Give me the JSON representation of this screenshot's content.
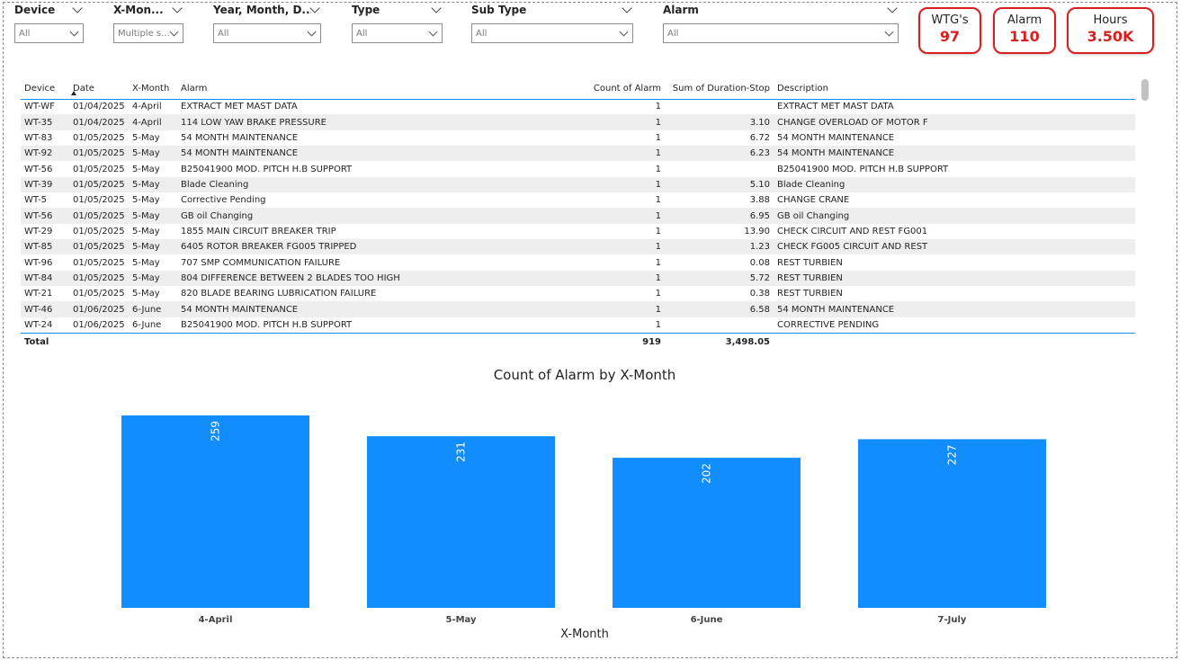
{
  "slicers": [
    {
      "title": "Device",
      "value": "All"
    },
    {
      "title": "X-Mon...",
      "value": "Multiple s..."
    },
    {
      "title": "Year, Month, D...",
      "value": "All"
    },
    {
      "title": "Type",
      "value": "All"
    },
    {
      "title": "Sub Type",
      "value": "All"
    },
    {
      "title": "Alarm",
      "value": "All"
    }
  ],
  "kpis": [
    {
      "label": "WTG's",
      "value": "97"
    },
    {
      "label": "Alarm",
      "value": "110"
    },
    {
      "label": "Hours",
      "value": "3.50K"
    }
  ],
  "table": {
    "headers": {
      "device": "Device",
      "date": "Date",
      "month": "X-Month",
      "alarm": "Alarm",
      "count": "Count of Alarm",
      "duration": "Sum of Duration-Stop",
      "description": "Description"
    },
    "rows": [
      {
        "device": "WT-WF",
        "date": "01/04/2025",
        "month": "4-April",
        "alarm": "EXTRACT MET MAST DATA",
        "count": "1",
        "duration": "",
        "description": "EXTRACT MET MAST DATA"
      },
      {
        "device": "WT-35",
        "date": "01/04/2025",
        "month": "4-April",
        "alarm": "114 LOW YAW BRAKE PRESSURE",
        "count": "1",
        "duration": "3.10",
        "description": "CHANGE OVERLOAD OF MOTOR F"
      },
      {
        "device": "WT-83",
        "date": "01/05/2025",
        "month": "5-May",
        "alarm": "54 MONTH MAINTENANCE",
        "count": "1",
        "duration": "6.72",
        "description": "54 MONTH MAINTENANCE"
      },
      {
        "device": "WT-92",
        "date": "01/05/2025",
        "month": "5-May",
        "alarm": "54 MONTH MAINTENANCE",
        "count": "1",
        "duration": "6.23",
        "description": "54 MONTH MAINTENANCE"
      },
      {
        "device": "WT-56",
        "date": "01/05/2025",
        "month": "5-May",
        "alarm": "B25041900 MOD. PITCH H.B SUPPORT",
        "count": "1",
        "duration": "",
        "description": "B25041900 MOD. PITCH H.B SUPPORT"
      },
      {
        "device": "WT-39",
        "date": "01/05/2025",
        "month": "5-May",
        "alarm": "Blade Cleaning",
        "count": "1",
        "duration": "5.10",
        "description": "Blade Cleaning"
      },
      {
        "device": "WT-5",
        "date": "01/05/2025",
        "month": "5-May",
        "alarm": "Corrective Pending",
        "count": "1",
        "duration": "3.88",
        "description": "CHANGE CRANE"
      },
      {
        "device": "WT-56",
        "date": "01/05/2025",
        "month": "5-May",
        "alarm": "GB oil Changing",
        "count": "1",
        "duration": "6.95",
        "description": "GB oil Changing"
      },
      {
        "device": "WT-29",
        "date": "01/05/2025",
        "month": "5-May",
        "alarm": "1855 MAIN CIRCUIT BREAKER TRIP",
        "count": "1",
        "duration": "13.90",
        "description": "CHECK CIRCUIT AND REST FG001"
      },
      {
        "device": "WT-85",
        "date": "01/05/2025",
        "month": "5-May",
        "alarm": "6405 ROTOR BREAKER FG005 TRIPPED",
        "count": "1",
        "duration": "1.23",
        "description": "CHECK FG005 CIRCUIT AND REST"
      },
      {
        "device": "WT-96",
        "date": "01/05/2025",
        "month": "5-May",
        "alarm": "707 SMP COMMUNICATION FAILURE",
        "count": "1",
        "duration": "0.08",
        "description": "REST TURBIEN"
      },
      {
        "device": "WT-84",
        "date": "01/05/2025",
        "month": "5-May",
        "alarm": "804 DIFFERENCE BETWEEN 2 BLADES TOO HIGH",
        "count": "1",
        "duration": "5.72",
        "description": "REST TURBIEN"
      },
      {
        "device": "WT-21",
        "date": "01/05/2025",
        "month": "5-May",
        "alarm": "820 BLADE BEARING LUBRICATION FAILURE",
        "count": "1",
        "duration": "0.38",
        "description": "REST TURBIEN"
      },
      {
        "device": "WT-46",
        "date": "01/06/2025",
        "month": "6-June",
        "alarm": "54 MONTH MAINTENANCE",
        "count": "1",
        "duration": "6.58",
        "description": "54 MONTH MAINTENANCE"
      },
      {
        "device": "WT-24",
        "date": "01/06/2025",
        "month": "6-June",
        "alarm": "B25041900 MOD. PITCH H.B SUPPORT",
        "count": "1",
        "duration": "",
        "description": "CORRECTIVE PENDING"
      }
    ],
    "total": {
      "label": "Total",
      "count": "919",
      "duration": "3,498.05"
    }
  },
  "chart_data": {
    "type": "bar",
    "title": "Count of Alarm by X-Month",
    "xlabel": "X-Month",
    "ylabel": "",
    "categories": [
      "4-April",
      "5-May",
      "6-June",
      "7-July"
    ],
    "values": [
      259,
      231,
      202,
      227
    ],
    "ylim": [
      0,
      259
    ],
    "bar_color": "#118dff"
  },
  "colors": {
    "accent": "#118dff",
    "kpi": "#d81e1e",
    "row_alt": "#eeeeee"
  }
}
